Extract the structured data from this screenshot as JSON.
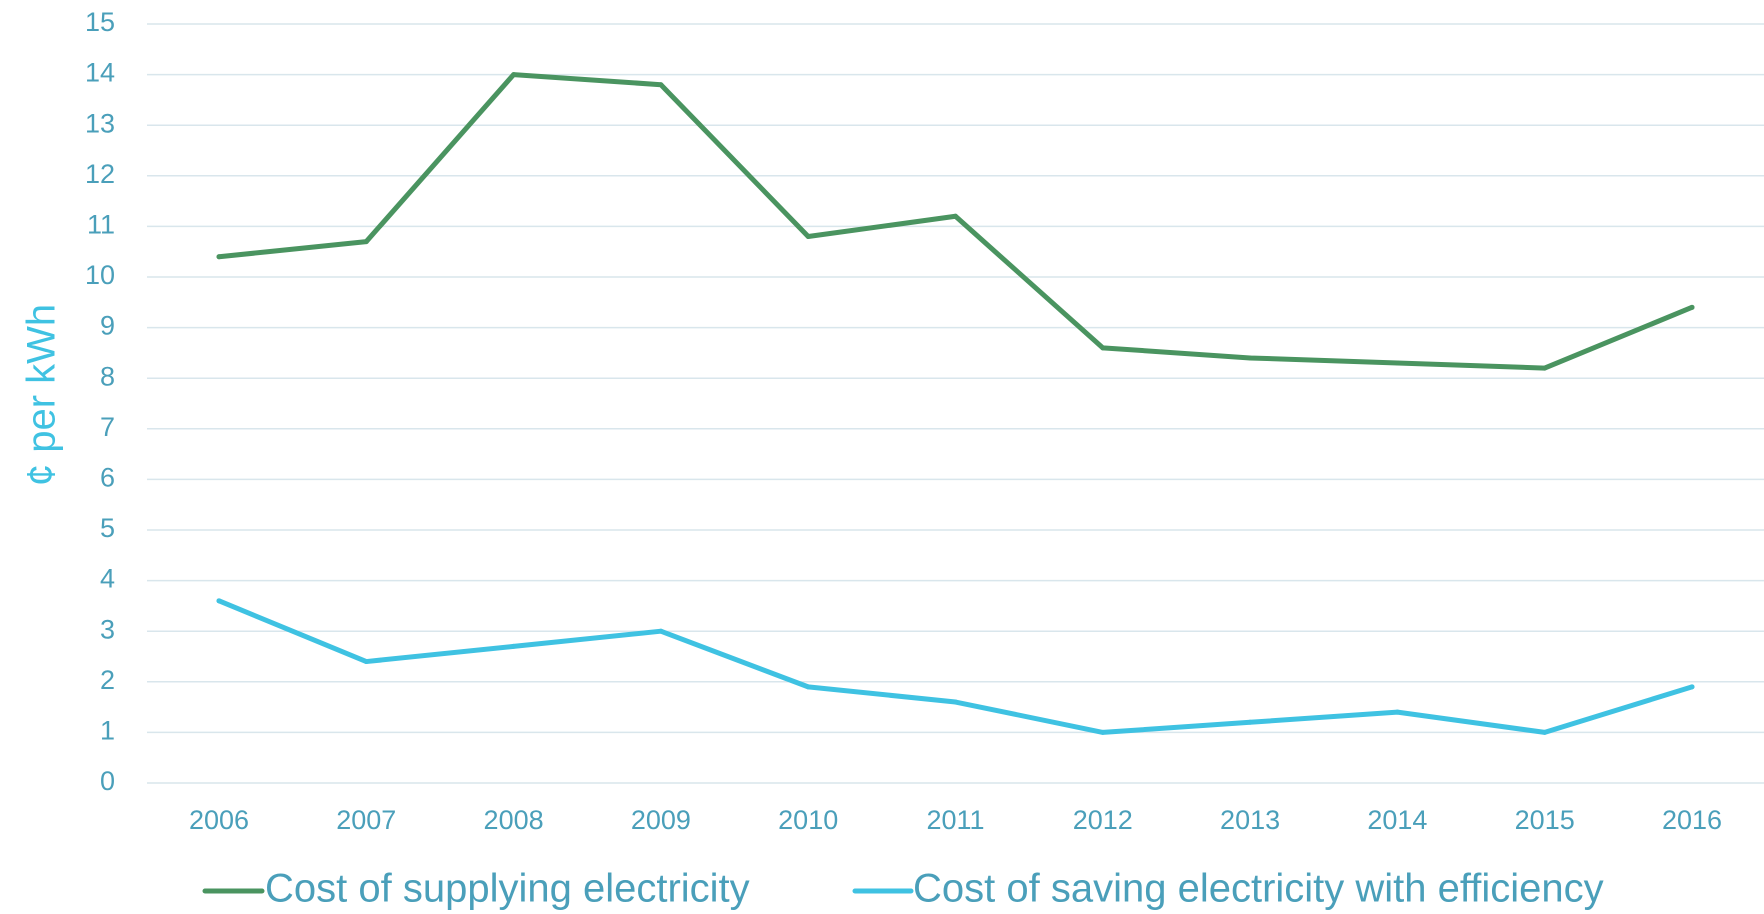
{
  "chart_data": {
    "type": "line",
    "title": "",
    "xlabel": "",
    "ylabel": "¢ per kWh",
    "categories": [
      "2006",
      "2007",
      "2008",
      "2009",
      "2010",
      "2011",
      "2012",
      "2013",
      "2014",
      "2015",
      "2016"
    ],
    "y_ticks": [
      "0",
      "1",
      "2",
      "3",
      "4",
      "5",
      "6",
      "7",
      "8",
      "9",
      "10",
      "11",
      "12",
      "13",
      "14",
      "15"
    ],
    "ylim": [
      0,
      15
    ],
    "grid": true,
    "legend_position": "bottom",
    "series": [
      {
        "name": "Cost of supplying electricity",
        "color": "#4a9460",
        "values": [
          10.4,
          10.7,
          14.0,
          13.8,
          10.8,
          11.2,
          8.6,
          8.4,
          8.3,
          8.2,
          9.4
        ]
      },
      {
        "name": "Cost of saving electricity with efficiency",
        "color": "#3fc2e2",
        "values": [
          3.6,
          2.4,
          2.7,
          3.0,
          1.9,
          1.6,
          1.0,
          1.2,
          1.4,
          1.0,
          1.9
        ]
      }
    ],
    "colors": {
      "tick_text": "#4a9fba",
      "ylabel_text": "#3fc2e2",
      "grid": "#d9e6ec",
      "legend_text": "#4a9fba"
    }
  }
}
